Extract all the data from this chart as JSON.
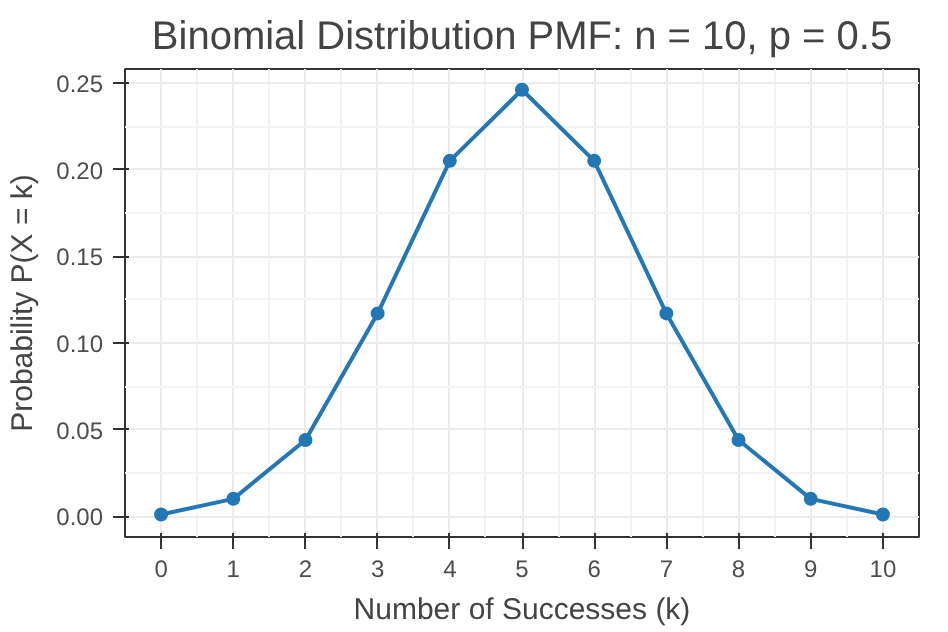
{
  "chart_data": {
    "type": "line",
    "title": "Binomial Distribution PMF: n = 10, p = 0.5",
    "xlabel": "Number of Successes (k)",
    "ylabel": "Probability P(X = k)",
    "x": [
      0,
      1,
      2,
      3,
      4,
      5,
      6,
      7,
      8,
      9,
      10
    ],
    "series": [
      {
        "color": "#2377b4",
        "values": [
          0.001,
          0.01,
          0.044,
          0.117,
          0.205,
          0.246,
          0.205,
          0.117,
          0.044,
          0.01,
          0.001
        ]
      }
    ],
    "xlim": [
      -0.5,
      10.5
    ],
    "ylim": [
      -0.012,
      0.258
    ],
    "xticks": [
      0,
      1,
      2,
      3,
      4,
      5,
      6,
      7,
      8,
      9,
      10
    ],
    "yticks": [
      {
        "value": 0,
        "label": "0.00"
      },
      {
        "value": 0.05,
        "label": "0.05"
      },
      {
        "value": 0.1,
        "label": "0.10"
      },
      {
        "value": 0.15,
        "label": "0.15"
      },
      {
        "value": 0.2,
        "label": "0.20"
      },
      {
        "value": 0.25,
        "label": "0.25"
      }
    ],
    "grid": true,
    "marker": "circle",
    "line_style": "solid"
  }
}
